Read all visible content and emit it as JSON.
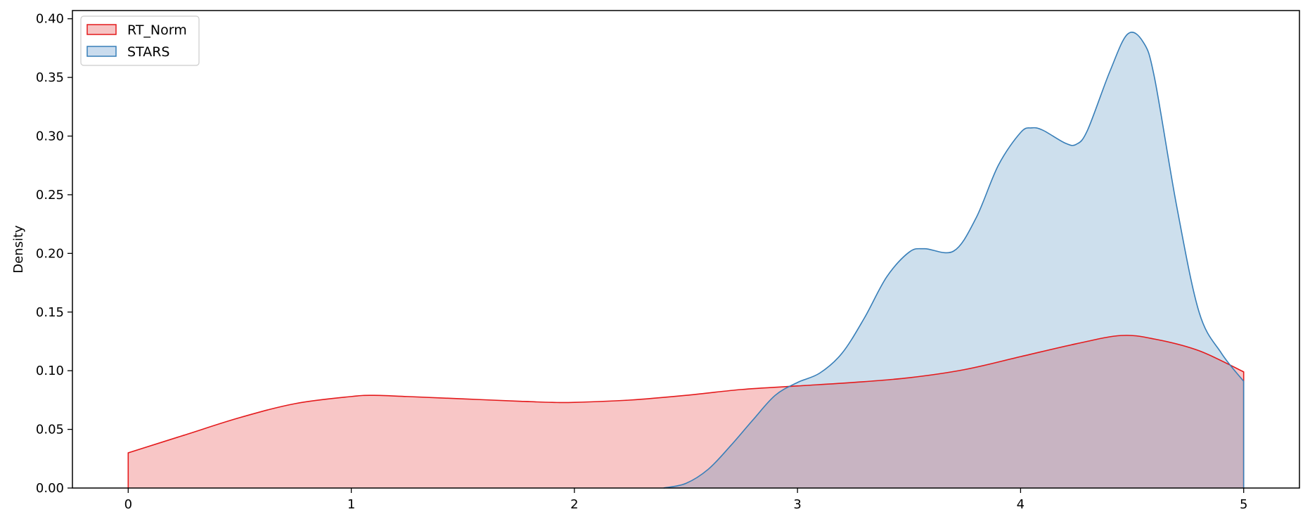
{
  "chart_data": {
    "type": "area",
    "title": "",
    "xlabel": "",
    "ylabel": "Density",
    "xlim": [
      -0.25,
      5.25
    ],
    "ylim": [
      0,
      0.407
    ],
    "xticks": [
      0,
      1,
      2,
      3,
      4,
      5
    ],
    "xtick_labels": [
      "0",
      "1",
      "2",
      "3",
      "4",
      "5"
    ],
    "yticks": [
      0,
      0.05,
      0.1,
      0.15,
      0.2,
      0.25,
      0.3,
      0.35,
      0.4
    ],
    "ytick_labels": [
      "0.00",
      "0.05",
      "0.10",
      "0.15",
      "0.20",
      "0.25",
      "0.30",
      "0.35",
      "0.40"
    ],
    "grid": false,
    "legend": {
      "position": "top-left",
      "entries": [
        {
          "label": "RT_Norm",
          "line_color": "#e41a1c",
          "fill_color": "#f6c4c4"
        },
        {
          "label": "STARS",
          "line_color": "#377eb8",
          "fill_color": "#cadcee"
        }
      ]
    },
    "series": [
      {
        "name": "RT_Norm",
        "color": "#e41a1c",
        "fill": "#e41a1c",
        "x": [
          0,
          0.25,
          0.5,
          0.75,
          1.0,
          1.1,
          1.25,
          1.5,
          1.75,
          1.9,
          2.0,
          2.25,
          2.5,
          2.75,
          3.0,
          3.25,
          3.5,
          3.75,
          4.0,
          4.25,
          4.45,
          4.6,
          4.8,
          5.0
        ],
        "y": [
          0.03,
          0.045,
          0.06,
          0.072,
          0.078,
          0.079,
          0.078,
          0.076,
          0.074,
          0.073,
          0.073,
          0.075,
          0.079,
          0.084,
          0.087,
          0.09,
          0.094,
          0.101,
          0.112,
          0.123,
          0.13,
          0.127,
          0.117,
          0.099
        ]
      },
      {
        "name": "STARS",
        "color": "#377eb8",
        "fill": "#377eb8",
        "x": [
          2.4,
          2.5,
          2.6,
          2.7,
          2.8,
          2.9,
          3.0,
          3.1,
          3.2,
          3.3,
          3.4,
          3.5,
          3.57,
          3.7,
          3.8,
          3.9,
          4.0,
          4.05,
          4.1,
          4.2,
          4.25,
          4.3,
          4.4,
          4.48,
          4.55,
          4.6,
          4.7,
          4.8,
          4.9,
          5.0
        ],
        "y": [
          0.0,
          0.004,
          0.016,
          0.036,
          0.058,
          0.079,
          0.09,
          0.098,
          0.115,
          0.145,
          0.18,
          0.201,
          0.204,
          0.202,
          0.23,
          0.275,
          0.303,
          0.307,
          0.305,
          0.294,
          0.293,
          0.305,
          0.355,
          0.387,
          0.38,
          0.35,
          0.24,
          0.15,
          0.115,
          0.091
        ]
      }
    ]
  }
}
